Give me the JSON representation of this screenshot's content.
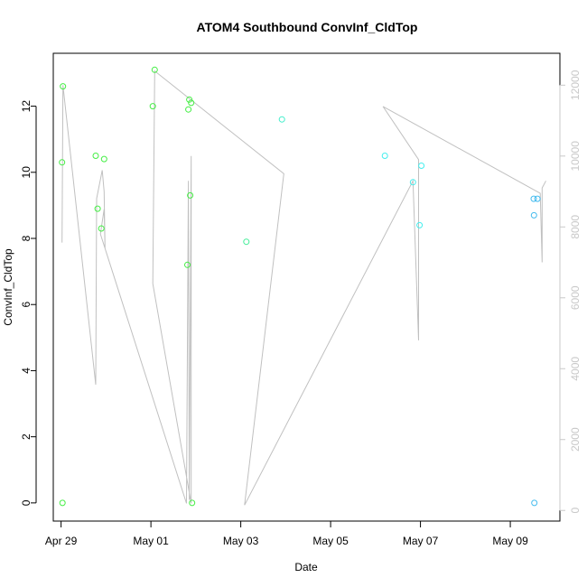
{
  "chart_data": {
    "type": "scatter",
    "title": "ATOM4 Southbound ConvInf_CldTop",
    "xlabel": "Date",
    "ylabel": "ConvInf_CldTop",
    "x_is_date": true,
    "xlim": [
      "2016-04-28T19:50",
      "2016-05-10T02:30"
    ],
    "ylim": [
      -0.55,
      13.6
    ],
    "y_ticks": [
      0,
      2,
      4,
      6,
      8,
      10,
      12
    ],
    "x_ticks": [
      {
        "date": "2016-04-29T00:00",
        "label": "Apr 29"
      },
      {
        "date": "2016-05-01T00:00",
        "label": "May 01"
      },
      {
        "date": "2016-05-03T00:00",
        "label": "May 03"
      },
      {
        "date": "2016-05-05T00:00",
        "label": "May 05"
      },
      {
        "date": "2016-05-07T00:00",
        "label": "May 07"
      },
      {
        "date": "2016-05-09T00:00",
        "label": "May 09"
      }
    ],
    "right_axis": {
      "ylim": [
        -300,
        12900
      ],
      "ticks": [
        0,
        2000,
        4000,
        6000,
        8000,
        10000,
        12000
      ],
      "color": "#c8c8c8"
    },
    "points": [
      {
        "date": "2016-04-29T00:30",
        "value": 10.3,
        "color": "#44ee44"
      },
      {
        "date": "2016-04-29T00:45",
        "value": 0,
        "color": "#44ee44"
      },
      {
        "date": "2016-04-29T01:00",
        "value": 12.6,
        "color": "#44ee44"
      },
      {
        "date": "2016-04-29T18:30",
        "value": 10.5,
        "color": "#44ee44"
      },
      {
        "date": "2016-04-29T19:30",
        "value": 8.9,
        "color": "#44ee44"
      },
      {
        "date": "2016-04-29T21:30",
        "value": 8.3,
        "color": "#44ee44"
      },
      {
        "date": "2016-04-29T23:00",
        "value": 10.4,
        "color": "#44ee44"
      },
      {
        "date": "2016-05-01T01:00",
        "value": 12.0,
        "color": "#44ee44"
      },
      {
        "date": "2016-05-01T02:00",
        "value": 13.1,
        "color": "#44ee44"
      },
      {
        "date": "2016-05-01T19:30",
        "value": 7.2,
        "color": "#44ee44"
      },
      {
        "date": "2016-05-01T20:00",
        "value": 11.9,
        "color": "#44ee44"
      },
      {
        "date": "2016-05-01T20:30",
        "value": 12.2,
        "color": "#44ee44"
      },
      {
        "date": "2016-05-01T21:00",
        "value": 9.3,
        "color": "#44ee44"
      },
      {
        "date": "2016-05-01T21:30",
        "value": 12.1,
        "color": "#44ee44"
      },
      {
        "date": "2016-05-01T22:00",
        "value": 0,
        "color": "#44ee44"
      },
      {
        "date": "2016-05-03T03:00",
        "value": 7.9,
        "color": "#44ee99"
      },
      {
        "date": "2016-05-03T22:00",
        "value": 11.6,
        "color": "#44eecc"
      },
      {
        "date": "2016-05-06T05:00",
        "value": 10.5,
        "color": "#44eeee"
      },
      {
        "date": "2016-05-06T20:00",
        "value": 9.7,
        "color": "#44eeee"
      },
      {
        "date": "2016-05-06T23:30",
        "value": 8.4,
        "color": "#44eeee"
      },
      {
        "date": "2016-05-07T00:30",
        "value": 10.2,
        "color": "#44eeee"
      },
      {
        "date": "2016-05-09T12:30",
        "value": 9.2,
        "color": "#44bbee"
      },
      {
        "date": "2016-05-09T12:40",
        "value": 8.7,
        "color": "#44bbee"
      },
      {
        "date": "2016-05-09T12:50",
        "value": 0,
        "color": "#44bbee"
      },
      {
        "date": "2016-05-09T14:30",
        "value": 9.2,
        "color": "#44bbee"
      }
    ],
    "line_series": {
      "color": "#c0c0c0",
      "points": [
        {
          "date": "2016-04-29T00:30",
          "value": 7560
        },
        {
          "date": "2016-04-29T01:00",
          "value": 12000
        },
        {
          "date": "2016-04-29T18:30",
          "value": 3550
        },
        {
          "date": "2016-04-29T19:00",
          "value": 8800
        },
        {
          "date": "2016-04-29T22:00",
          "value": 9600
        },
        {
          "date": "2016-04-29T23:00",
          "value": 9000
        },
        {
          "date": "2016-04-29T23:30",
          "value": 7400
        },
        {
          "date": "2016-04-29T23:00",
          "value": 8500
        },
        {
          "date": "2016-04-29T21:00",
          "value": 7800
        },
        {
          "date": "2016-05-01T19:00",
          "value": 200
        },
        {
          "date": "2016-05-01T20:00",
          "value": 9300
        },
        {
          "date": "2016-05-01T20:30",
          "value": 300
        },
        {
          "date": "2016-05-01T21:30",
          "value": 10000
        },
        {
          "date": "2016-05-01T21:30",
          "value": 200
        },
        {
          "date": "2016-05-01T01:00",
          "value": 6400
        },
        {
          "date": "2016-05-01T02:00",
          "value": 12400
        },
        {
          "date": "2016-05-03T23:00",
          "value": 9500
        },
        {
          "date": "2016-05-03T02:00",
          "value": 150
        },
        {
          "date": "2016-05-06T20:00",
          "value": 9300
        },
        {
          "date": "2016-05-06T23:00",
          "value": 4800
        },
        {
          "date": "2016-05-06T23:00",
          "value": 9900
        },
        {
          "date": "2016-05-06T04:00",
          "value": 11400
        },
        {
          "date": "2016-05-09T16:00",
          "value": 8950
        },
        {
          "date": "2016-05-09T17:00",
          "value": 7000
        },
        {
          "date": "2016-05-09T17:00",
          "value": 9100
        },
        {
          "date": "2016-05-09T19:00",
          "value": 9300
        }
      ]
    }
  }
}
